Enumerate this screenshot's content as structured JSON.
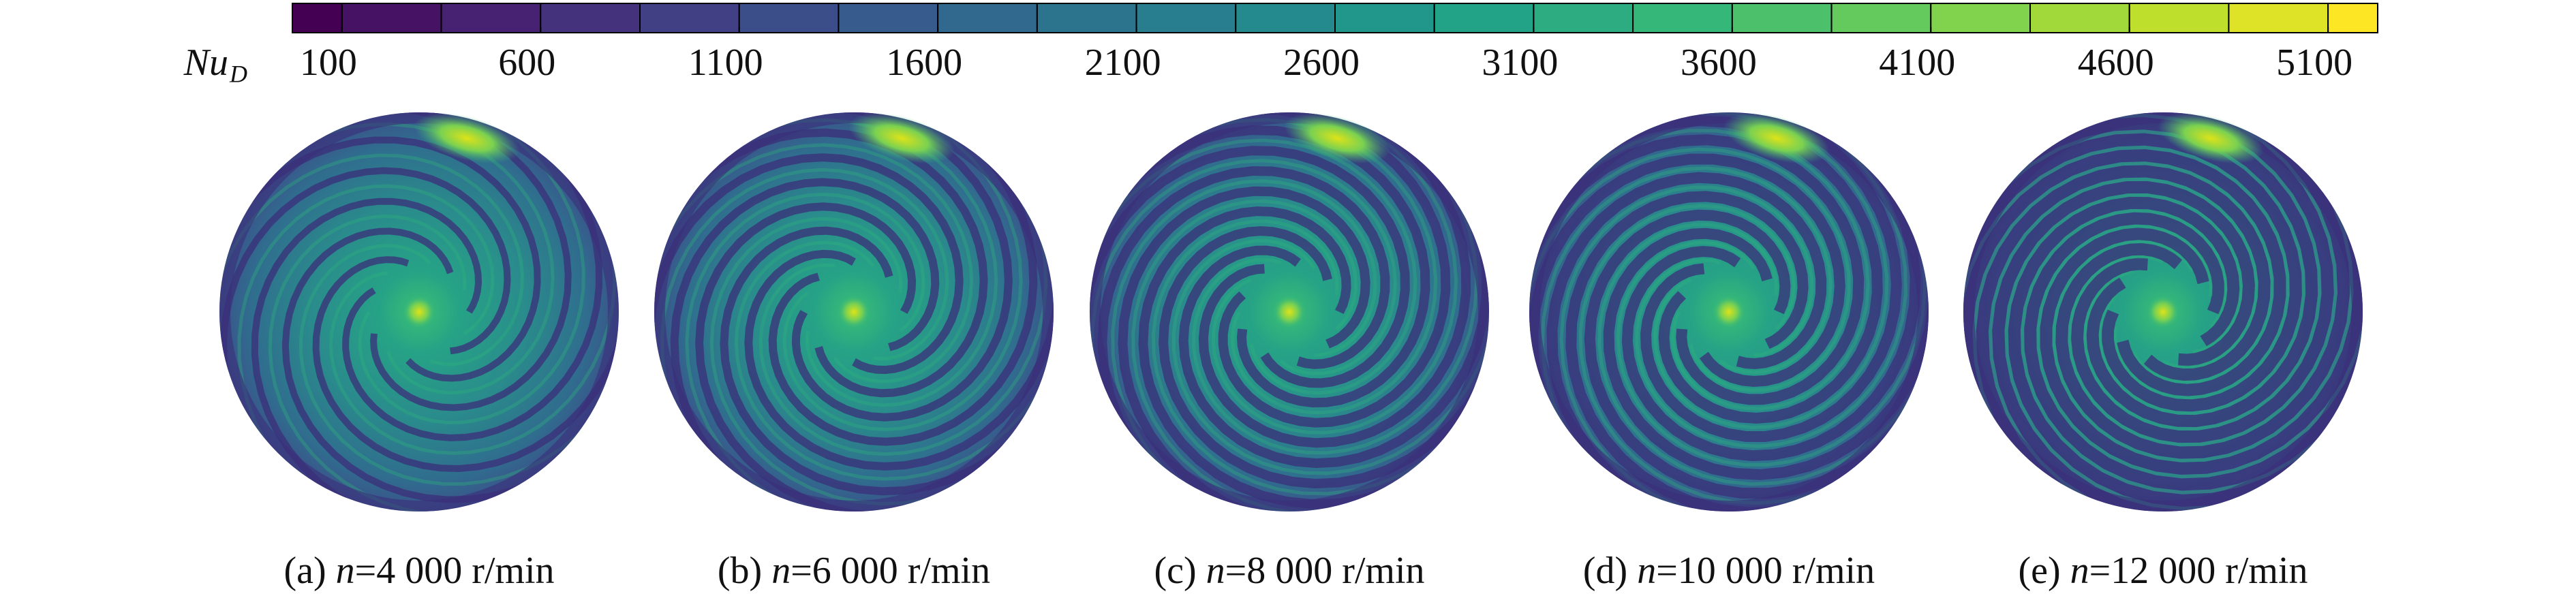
{
  "chart_data": {
    "type": "contour-panels",
    "colorbar": {
      "label": {
        "main": "Nu",
        "sub": "D"
      },
      "colormap": "viridis",
      "clim": [
        -25,
        5225
      ],
      "level_step": 250,
      "ticks": [
        100,
        600,
        1100,
        1600,
        2100,
        2600,
        3100,
        3600,
        4100,
        4600,
        5100
      ]
    },
    "panels": [
      {
        "tag": "(a)",
        "var": "n",
        "rest": "=4 000 r/min"
      },
      {
        "tag": "(b)",
        "var": "n",
        "rest": "=6 000 r/min"
      },
      {
        "tag": "(c)",
        "var": "n",
        "rest": "=8 000 r/min"
      },
      {
        "tag": "(d)",
        "var": "n",
        "rest": "=10 000 r/min"
      },
      {
        "tag": "(e)",
        "var": "n",
        "rest": "=12 000 r/min"
      }
    ]
  }
}
